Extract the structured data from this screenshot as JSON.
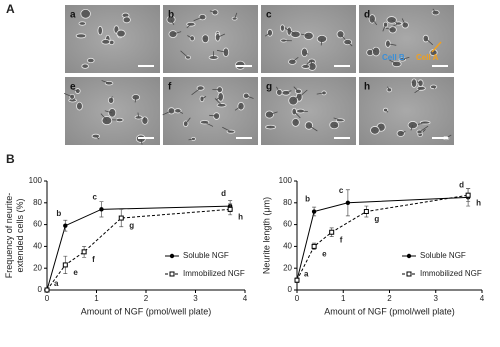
{
  "figure": {
    "panel_a": {
      "label": "A",
      "images": [
        {
          "label": "a"
        },
        {
          "label": "b"
        },
        {
          "label": "c"
        },
        {
          "label": "d"
        },
        {
          "label": "e"
        },
        {
          "label": "f"
        },
        {
          "label": "g"
        },
        {
          "label": "h"
        }
      ],
      "annotations": {
        "cell_b": "Cell B",
        "cell_a": "Cell A"
      }
    },
    "panel_b": {
      "label": "B"
    }
  },
  "chart_data": [
    {
      "type": "line",
      "xlabel": "Amount of NGF (pmol/well plate)",
      "ylabel": [
        "Frequency of neurite-",
        "extended cells (%)"
      ],
      "xlim": [
        0,
        4
      ],
      "xticks": [
        0,
        1,
        2,
        3,
        4
      ],
      "ylim": [
        0,
        100
      ],
      "yticks": [
        0,
        20,
        40,
        60,
        80,
        100
      ],
      "legend": "lower right",
      "series": [
        {
          "name": "Soluble NGF",
          "color": "#000000",
          "marker": "filled-circle",
          "linestyle": "solid",
          "x": [
            0,
            0.37,
            1.1,
            3.7
          ],
          "values": [
            0,
            59,
            74,
            77
          ],
          "errors": [
            0,
            5,
            7,
            5
          ],
          "point_labels": [
            "a",
            "b",
            "c",
            "d"
          ]
        },
        {
          "name": "Immobilized NGF",
          "color": "#000000",
          "marker": "open-square",
          "linestyle": "dashed",
          "x": [
            0,
            0.37,
            0.75,
            1.5,
            3.7
          ],
          "values": [
            0,
            23,
            35,
            66,
            74
          ],
          "errors": [
            0,
            8,
            5,
            8,
            5
          ],
          "point_labels": [
            null,
            "e",
            "f",
            "g",
            "h"
          ]
        }
      ]
    },
    {
      "type": "line",
      "xlabel": "Amount of NGF (pmol/well plate)",
      "ylabel": [
        "Neurite length (μm)"
      ],
      "xlim": [
        0,
        4
      ],
      "xticks": [
        0,
        1,
        2,
        3,
        4
      ],
      "ylim": [
        0,
        100
      ],
      "yticks": [
        0,
        20,
        40,
        60,
        80,
        100
      ],
      "legend": "lower right",
      "series": [
        {
          "name": "Soluble NGF",
          "color": "#000000",
          "marker": "filled-circle",
          "linestyle": "solid",
          "x": [
            0,
            0.37,
            1.1,
            3.7
          ],
          "values": [
            9,
            72,
            80,
            85
          ],
          "errors": [
            2,
            4,
            12,
            8
          ],
          "point_labels": [
            "a",
            "b",
            "c",
            "d"
          ]
        },
        {
          "name": "Immobilized NGF",
          "color": "#000000",
          "marker": "open-square",
          "linestyle": "dashed",
          "x": [
            0,
            0.37,
            0.75,
            1.5,
            3.7
          ],
          "values": [
            9,
            40,
            53,
            72,
            87
          ],
          "errors": [
            2,
            3,
            4,
            5,
            6
          ],
          "point_labels": [
            null,
            "e",
            "f",
            "g",
            "h"
          ]
        }
      ]
    }
  ]
}
